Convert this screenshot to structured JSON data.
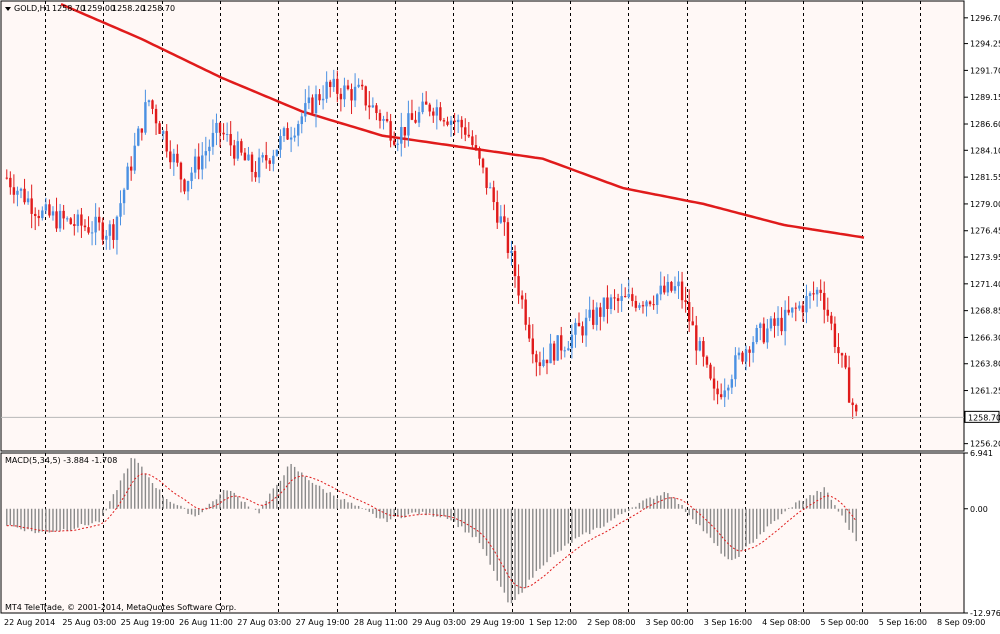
{
  "chart_data": [
    {
      "type": "candlestick",
      "title": "GOLD,H1",
      "header_values": [
        "1258.70",
        "1259.00",
        "1258.20",
        "1258.70"
      ],
      "current_price_label": "1258.70",
      "current_price": 1258.7,
      "ylim": [
        1255.5,
        1298.3
      ],
      "y_ticks": [
        "1296.70",
        "1294.25",
        "1291.70",
        "1289.15",
        "1286.60",
        "1284.10",
        "1281.55",
        "1279.00",
        "1276.45",
        "1273.95",
        "1271.40",
        "1268.85",
        "1266.30",
        "1263.80",
        "1261.25",
        "1256.20"
      ],
      "x_ticks": [
        "22 Aug 2014",
        "25 Aug 03:00",
        "25 Aug 19:00",
        "26 Aug 11:00",
        "27 Aug 03:00",
        "27 Aug 19:00",
        "28 Aug 11:00",
        "29 Aug 03:00",
        "29 Aug 19:00",
        "1 Sep 12:00",
        "2 Sep 08:00",
        "3 Sep 00:00",
        "3 Sep 16:00",
        "4 Sep 08:00",
        "5 Sep 00:00",
        "5 Sep 16:00",
        "8 Sep 09:00"
      ],
      "close_anchors": [
        1281.5,
        1278.0,
        1277.0,
        1276.5,
        1289.0,
        1281.0,
        1286.0,
        1282.0,
        1286.0,
        1290.0,
        1289.5,
        1285.5,
        1288.5,
        1286.0,
        1277.0,
        1264.0,
        1266.5,
        1269.5,
        1270.0,
        1271.0,
        1260.5,
        1266.0,
        1268.0,
        1271.0,
        1258.7
      ],
      "ma_anchors": [
        1298.0,
        1294.7,
        1291.0,
        1287.8,
        1285.5,
        1284.4,
        1283.3,
        1280.5,
        1279.0,
        1277.0,
        1275.8
      ],
      "colors": {
        "up": "#4a90e2",
        "down": "#e01b1b",
        "ma": "#e01b1b",
        "grid": "#000000",
        "background": "#fff8f6"
      }
    },
    {
      "type": "histogram",
      "indicator_label": "MACD(5,34,5) -3.884 -1.708",
      "ylim": [
        -12.976,
        6.941
      ],
      "y_ticks": [
        "6.941",
        "0.00",
        "-12.976"
      ],
      "hist_anchors": [
        -2.0,
        -3.0,
        -2.5,
        -1.5,
        6.5,
        1.5,
        -1.0,
        2.5,
        -0.5,
        5.5,
        2.5,
        0.5,
        -1.5,
        -0.5,
        -1.0,
        -4.0,
        -12.2,
        -7.0,
        -4.0,
        -2.0,
        0.5,
        2.2,
        -2.0,
        -6.8,
        -3.0,
        0.5,
        2.5,
        -3.9
      ],
      "signal_color": "#e01b1b",
      "bar_color": "#8a8a8a"
    }
  ],
  "footer": {
    "copyright": "MT4 TeleTrade, © 2001-2014, MetaQuotes Software Corp."
  }
}
